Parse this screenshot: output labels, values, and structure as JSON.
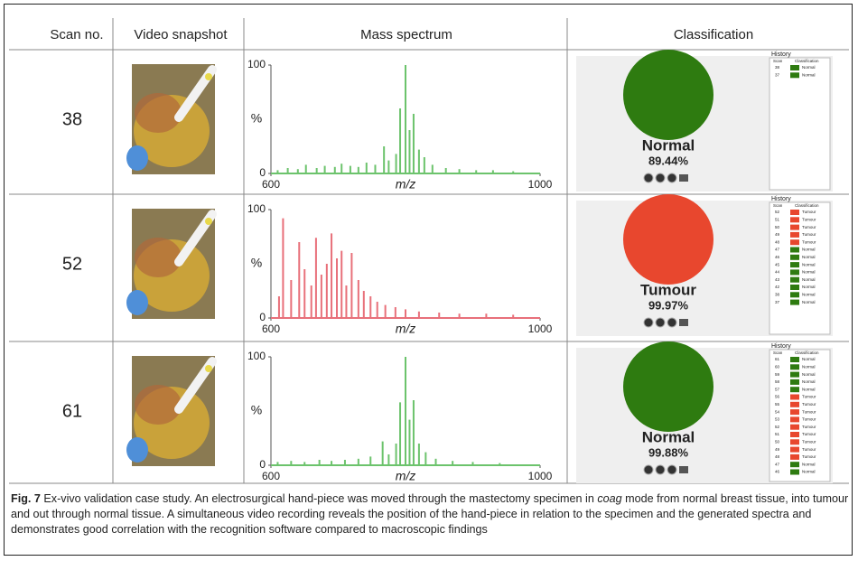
{
  "header": [
    "Scan no.",
    "Video snapshot",
    "Mass spectrum",
    "Classification"
  ],
  "colors": {
    "Normal": "#2e7b10",
    "Tumour": "#e8472e"
  },
  "rows": [
    {
      "scan": "38",
      "spectrum": {
        "type": "spectrum",
        "ylabel": "%",
        "xlabel": "m/z",
        "color": "#6cc36c",
        "xlim": [
          600,
          1000
        ],
        "ylim": [
          0,
          100
        ],
        "xticks": [
          600,
          1000
        ],
        "yticks": [
          0,
          100
        ],
        "x": [
          610,
          625,
          640,
          652,
          668,
          680,
          695,
          705,
          718,
          730,
          742,
          755,
          768,
          775,
          786,
          792,
          800,
          806,
          812,
          820,
          828,
          840,
          860,
          880,
          905,
          930,
          960
        ],
        "values": [
          3,
          5,
          4,
          8,
          5,
          7,
          6,
          9,
          7,
          6,
          10,
          8,
          25,
          12,
          18,
          60,
          100,
          40,
          55,
          22,
          15,
          8,
          5,
          4,
          3,
          3,
          2
        ]
      },
      "classification": {
        "label": "Normal",
        "percent": "89.44%"
      },
      "history": {
        "title": "History",
        "columns": [
          "Scan",
          "Classification"
        ],
        "entries": [
          [
            "38",
            "Normal"
          ],
          [
            "37",
            "Normal"
          ]
        ]
      }
    },
    {
      "scan": "52",
      "spectrum": {
        "type": "spectrum",
        "ylabel": "%",
        "xlabel": "m/z",
        "color": "#e8707a",
        "xlim": [
          600,
          1000
        ],
        "ylim": [
          0,
          100
        ],
        "xticks": [
          600,
          1000
        ],
        "yticks": [
          0,
          100
        ],
        "x": [
          612,
          618,
          630,
          642,
          650,
          660,
          667,
          675,
          683,
          690,
          698,
          705,
          712,
          720,
          730,
          738,
          748,
          758,
          770,
          785,
          800,
          820,
          850,
          880,
          920,
          960
        ],
        "values": [
          20,
          92,
          35,
          70,
          45,
          30,
          74,
          40,
          50,
          78,
          55,
          62,
          30,
          60,
          35,
          25,
          20,
          15,
          12,
          10,
          8,
          6,
          5,
          4,
          4,
          3
        ]
      },
      "classification": {
        "label": "Tumour",
        "percent": "99.97%"
      },
      "history": {
        "title": "History",
        "columns": [
          "Scan",
          "Classification"
        ],
        "entries": [
          [
            "52",
            "Tumour"
          ],
          [
            "51",
            "Tumour"
          ],
          [
            "50",
            "Tumour"
          ],
          [
            "49",
            "Tumour"
          ],
          [
            "48",
            "Tumour"
          ],
          [
            "47",
            "Normal"
          ],
          [
            "46",
            "Normal"
          ],
          [
            "45",
            "Normal"
          ],
          [
            "44",
            "Normal"
          ],
          [
            "43",
            "Normal"
          ],
          [
            "42",
            "Normal"
          ],
          [
            "38",
            "Normal"
          ],
          [
            "37",
            "Normal"
          ]
        ]
      }
    },
    {
      "scan": "61",
      "spectrum": {
        "type": "spectrum",
        "ylabel": "%",
        "xlabel": "m/z",
        "color": "#6cc36c",
        "xlim": [
          600,
          1000
        ],
        "ylim": [
          0,
          100
        ],
        "xticks": [
          600,
          1000
        ],
        "yticks": [
          0,
          100
        ],
        "x": [
          610,
          630,
          650,
          672,
          690,
          710,
          730,
          748,
          766,
          775,
          786,
          792,
          800,
          806,
          812,
          820,
          830,
          845,
          870,
          900,
          940
        ],
        "values": [
          3,
          4,
          3,
          5,
          4,
          5,
          6,
          8,
          22,
          10,
          20,
          58,
          100,
          42,
          60,
          20,
          12,
          6,
          4,
          3,
          2
        ]
      },
      "classification": {
        "label": "Normal",
        "percent": "99.88%"
      },
      "history": {
        "title": "History",
        "columns": [
          "Scan",
          "Classification"
        ],
        "entries": [
          [
            "61",
            "Normal"
          ],
          [
            "60",
            "Normal"
          ],
          [
            "59",
            "Normal"
          ],
          [
            "58",
            "Normal"
          ],
          [
            "57",
            "Normal"
          ],
          [
            "56",
            "Tumour"
          ],
          [
            "55",
            "Tumour"
          ],
          [
            "54",
            "Tumour"
          ],
          [
            "53",
            "Tumour"
          ],
          [
            "52",
            "Tumour"
          ],
          [
            "51",
            "Tumour"
          ],
          [
            "50",
            "Tumour"
          ],
          [
            "49",
            "Tumour"
          ],
          [
            "48",
            "Tumour"
          ],
          [
            "47",
            "Normal"
          ],
          [
            "46",
            "Normal"
          ]
        ]
      }
    }
  ],
  "caption": {
    "label": "Fig. 7",
    "parts": [
      "Ex-vivo validation case study. An electrosurgical hand-piece was moved through the mastectomy specimen in ",
      "coag",
      " mode from normal breast tissue, into tumour and out through normal tissue. A simultaneous video recording reveals the position of the hand-piece in relation to the specimen and the generated spectra and demonstrates good correlation with the recognition software compared to macroscopic findings"
    ]
  }
}
